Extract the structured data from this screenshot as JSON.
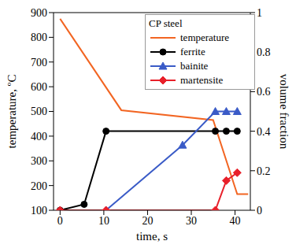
{
  "chart_data": {
    "type": "line",
    "title": "CP steel",
    "x_label": "time, s",
    "y_label": "temperature, ºC",
    "y2_label": "volume fraction",
    "xlim": [
      -1.5,
      43.5
    ],
    "xticks": [
      0,
      10,
      20,
      30,
      40
    ],
    "ylim": [
      100,
      900
    ],
    "yticks": [
      100,
      200,
      300,
      400,
      500,
      600,
      700,
      800,
      900
    ],
    "y2lim": [
      0,
      1
    ],
    "y2ticks": [
      0,
      0.2,
      0.4,
      0.6,
      0.8,
      1
    ],
    "legend": "upper right",
    "series": [
      {
        "name": "temperature",
        "color": "#f26522",
        "marker": "none",
        "x": [
          0,
          14,
          35,
          40.5,
          43
        ],
        "values": [
          875,
          505,
          465,
          165,
          165
        ]
      },
      {
        "name": "ferrite",
        "color": "#000000",
        "marker": "circle",
        "axis": "y2",
        "x": [
          0,
          5.5,
          10.5,
          35.5,
          38,
          40.5
        ],
        "values": [
          0,
          0.03,
          0.4,
          0.4,
          0.4,
          0.4
        ]
      },
      {
        "name": "bainite",
        "color": "#3a5bc7",
        "marker": "triangle",
        "axis": "y2",
        "x": [
          0,
          10.5,
          28,
          35.5,
          38,
          40.5
        ],
        "values": [
          0,
          0,
          0.33,
          0.5,
          0.5,
          0.5
        ]
      },
      {
        "name": "martensite",
        "color": "#e8202a",
        "marker": "diamond",
        "axis": "y2",
        "x": [
          0,
          10.5,
          35.5,
          38,
          40.5
        ],
        "values": [
          0,
          0,
          0,
          0.15,
          0.19
        ]
      }
    ]
  }
}
